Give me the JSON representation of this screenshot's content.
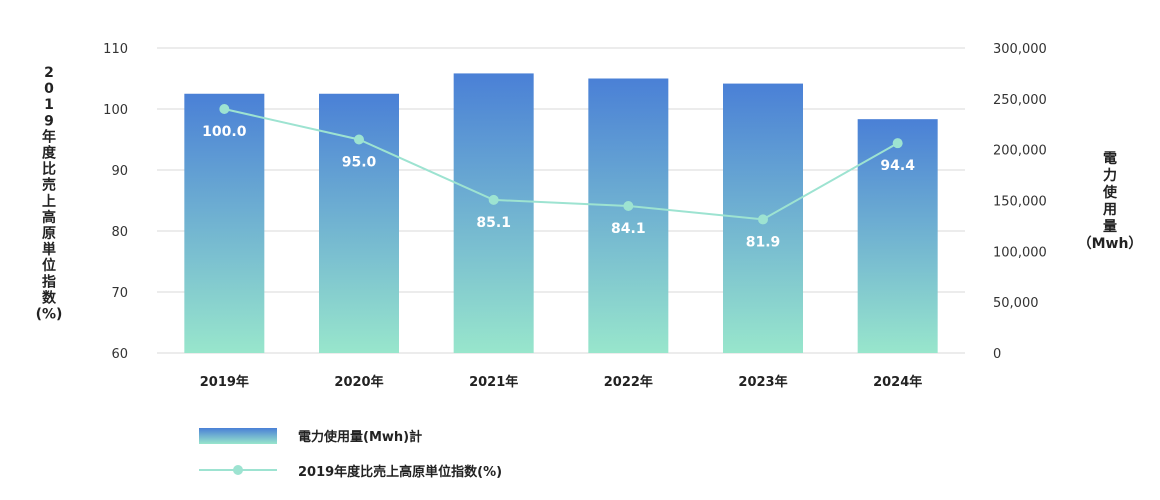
{
  "chart_data": {
    "type": "bar",
    "categories": [
      "2019年",
      "2020年",
      "2021年",
      "2022年",
      "2023年",
      "2024年"
    ],
    "series": [
      {
        "name": "電力使用量(Mwh)計",
        "type": "bar",
        "axis": "right",
        "values": [
          255000,
          255000,
          275000,
          270000,
          265000,
          230000
        ]
      },
      {
        "name": "2019年度比売上高原単位指数(%)",
        "type": "line",
        "axis": "left",
        "values": [
          100.0,
          95.0,
          85.1,
          84.1,
          81.9,
          94.4
        ],
        "data_labels": [
          "100.0",
          "95.0",
          "85.1",
          "84.1",
          "81.9",
          "94.4"
        ]
      }
    ],
    "left_axis": {
      "label_chars": [
        "2",
        "0",
        "1",
        "9",
        "年",
        "度",
        "比",
        "売",
        "上",
        "高",
        "原",
        "単",
        "位",
        "指",
        "数",
        "(%)"
      ],
      "ylim": [
        60,
        110
      ],
      "ticks": [
        60,
        70,
        80,
        90,
        100,
        110
      ],
      "tick_labels": [
        "60",
        "70",
        "80",
        "90",
        "100",
        "110"
      ]
    },
    "right_axis": {
      "label_chars": [
        "電",
        "力",
        "使",
        "用",
        "量",
        "（Mwh）"
      ],
      "ylim": [
        0,
        300000
      ],
      "ticks": [
        0,
        50000,
        100000,
        150000,
        200000,
        250000,
        300000
      ],
      "tick_labels": [
        "0",
        "50,000",
        "100,000",
        "150,000",
        "200,000",
        "250,000",
        "300,000"
      ]
    },
    "grid": true,
    "legend_position": "bottom-left",
    "colors": {
      "bar_top": "#4a80d6",
      "bar_bottom": "#98e6cc",
      "line": "#9de3d1",
      "grid": "#d9d9d9",
      "label": "#ffffff"
    }
  }
}
